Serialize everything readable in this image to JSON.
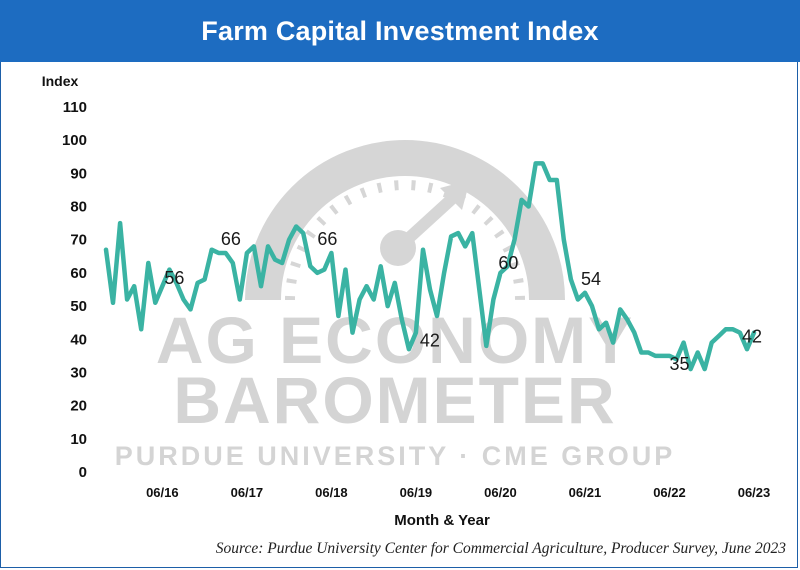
{
  "chart_data": {
    "type": "line",
    "title": "Farm Capital Investment Index",
    "ylabel": "Index",
    "xlabel": "Month & Year",
    "ylim": [
      0,
      110
    ],
    "y_ticks": [
      0,
      10,
      20,
      30,
      40,
      50,
      60,
      70,
      80,
      90,
      100,
      110
    ],
    "x_tick_labels": [
      "06/16",
      "06/17",
      "06/18",
      "06/19",
      "06/20",
      "06/21",
      "06/22",
      "06/23"
    ],
    "grid": false,
    "line_color": "#3ab3a3",
    "series": [
      {
        "x": [
          "2015-10",
          "2015-11",
          "2015-12",
          "2016-01",
          "2016-02",
          "2016-03",
          "2016-04",
          "2016-05",
          "2016-06",
          "2016-07",
          "2016-08",
          "2016-09",
          "2016-10",
          "2016-11",
          "2016-12",
          "2017-01",
          "2017-02",
          "2017-03",
          "2017-04",
          "2017-05",
          "2017-06",
          "2017-07",
          "2017-08",
          "2017-09",
          "2017-10",
          "2017-11",
          "2017-12",
          "2018-01",
          "2018-02",
          "2018-03",
          "2018-04",
          "2018-05",
          "2018-06",
          "2018-07",
          "2018-08",
          "2018-09",
          "2018-10",
          "2018-11",
          "2018-12",
          "2019-01",
          "2019-02",
          "2019-03",
          "2019-04",
          "2019-05",
          "2019-06",
          "2019-07",
          "2019-08",
          "2019-09",
          "2019-10",
          "2019-11",
          "2019-12",
          "2020-01",
          "2020-02",
          "2020-03",
          "2020-04",
          "2020-05",
          "2020-06",
          "2020-07",
          "2020-08",
          "2020-09",
          "2020-10",
          "2020-11",
          "2020-12",
          "2021-01",
          "2021-02",
          "2021-03",
          "2021-04",
          "2021-05",
          "2021-06",
          "2021-07",
          "2021-08",
          "2021-09",
          "2021-10",
          "2021-11",
          "2021-12",
          "2022-01",
          "2022-02",
          "2022-03",
          "2022-04",
          "2022-05",
          "2022-06",
          "2022-07",
          "2022-08",
          "2022-09",
          "2022-10",
          "2022-11",
          "2022-12",
          "2023-01",
          "2023-02",
          "2023-03",
          "2023-04",
          "2023-05",
          "2023-06"
        ],
        "values": [
          67,
          51,
          75,
          52,
          56,
          43,
          63,
          51,
          56,
          61,
          57,
          52,
          49,
          57,
          58,
          67,
          66,
          66,
          63,
          52,
          66,
          68,
          56,
          68,
          64,
          63,
          70,
          74,
          72,
          62,
          60,
          61,
          66,
          47,
          61,
          42,
          52,
          56,
          52,
          62,
          50,
          57,
          46,
          37,
          42,
          67,
          55,
          47,
          60,
          71,
          72,
          68,
          72,
          55,
          38,
          52,
          60,
          62,
          70,
          82,
          80,
          93,
          93,
          88,
          88,
          70,
          58,
          52,
          54,
          50,
          43,
          45,
          39,
          49,
          46,
          42,
          36,
          36,
          35,
          35,
          35,
          34,
          39,
          31,
          36,
          31,
          39,
          41,
          43,
          43,
          42,
          37,
          42
        ]
      }
    ],
    "annotations": [
      {
        "x": "2016-06",
        "label": "56"
      },
      {
        "x": "2017-06",
        "label": "66"
      },
      {
        "x": "2018-06",
        "label": "66"
      },
      {
        "x": "2019-06",
        "label": "42"
      },
      {
        "x": "2020-06",
        "label": "60"
      },
      {
        "x": "2021-06",
        "label": "54"
      },
      {
        "x": "2022-06",
        "label": "35"
      },
      {
        "x": "2023-06",
        "label": "42"
      }
    ]
  },
  "watermark": {
    "line1": "AG ECONOMY",
    "line2": "BAROMETER",
    "line3": "PURDUE UNIVERSITY · CME GROUP",
    "color": "#d2d2d2"
  },
  "source": "Source: Purdue University Center for Commercial Agriculture, Producer Survey, June 2023",
  "colors": {
    "title_bar": "#1d6cc1",
    "line": "#3ab3a3",
    "watermark": "#d2d2d2"
  }
}
